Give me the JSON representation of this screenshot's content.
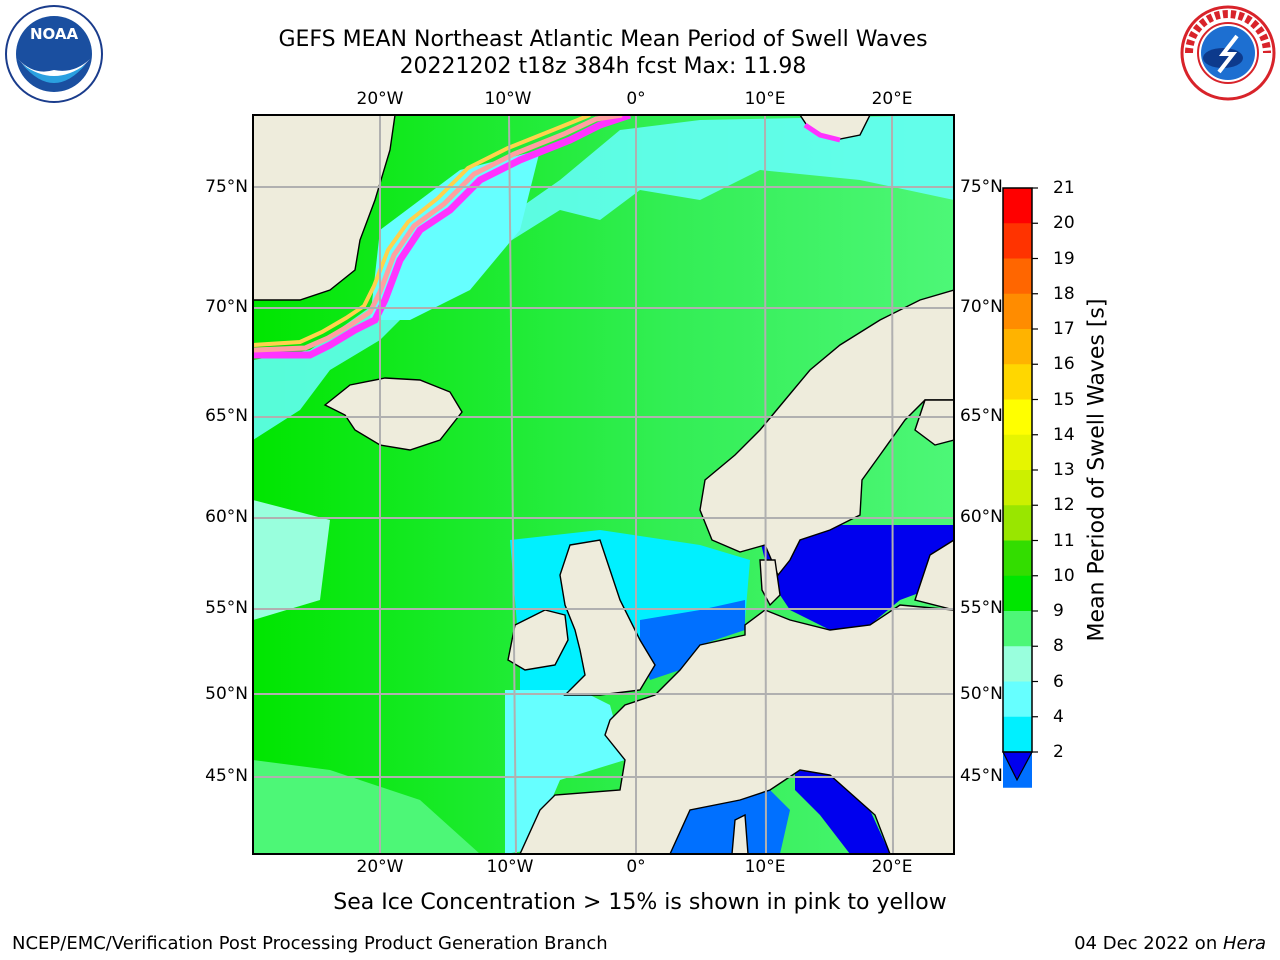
{
  "header": {
    "title_line1": "GEFS MEAN Northeast Atlantic Mean Period of Swell Waves",
    "title_line2": "20221202 t18z 384h fcst   Max: 11.98"
  },
  "logos": {
    "left": "noaa-logo",
    "right": "national-weather-service-logo"
  },
  "map": {
    "lon_labels": [
      "20°W",
      "10°W",
      "0°",
      "10°E",
      "20°E"
    ],
    "lat_labels": [
      "75°N",
      "70°N",
      "65°N",
      "60°N",
      "55°N",
      "50°N",
      "45°N"
    ],
    "colors": {
      "land": "#eeecdc",
      "grid": "#b0b0b0",
      "sea_ice_edge": [
        "#ff33ff",
        "#ffa0a0",
        "#ffd24d"
      ]
    }
  },
  "colorbar": {
    "label": "Mean Period of Swell Waves [s]",
    "ticks": [
      "21",
      "20",
      "19",
      "18",
      "17",
      "16",
      "15",
      "14",
      "13",
      "12",
      "11",
      "10",
      "9",
      "8",
      "6",
      "4",
      "2"
    ],
    "colors": [
      "#ff0000",
      "#ff3300",
      "#ff6600",
      "#ff8c00",
      "#ffb300",
      "#ffd700",
      "#ffff00",
      "#e6f500",
      "#ccf000",
      "#99e600",
      "#33dd00",
      "#00e600",
      "#4df777",
      "#99ffdd",
      "#66ffff",
      "#00f0ff",
      "#0070ff"
    ],
    "under_color": "#0000ee"
  },
  "footnote": "Sea Ice Concentration > 15% is shown in pink to yellow",
  "credits": {
    "left": "NCEP/EMC/Verification Post Processing Product Generation Branch",
    "date": "04 Dec 2022 on ",
    "machine": "Hera"
  }
}
